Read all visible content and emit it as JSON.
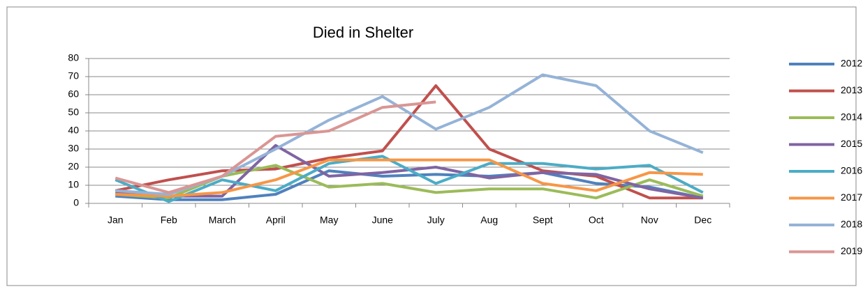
{
  "chart_data": {
    "type": "line",
    "title": "Died in Shelter",
    "categories": [
      "Jan",
      "Feb",
      "March",
      "April",
      "May",
      "June",
      "July",
      "Aug",
      "Sept",
      "Oct",
      "Nov",
      "Dec"
    ],
    "series": [
      {
        "name": "2012",
        "color": "#4f81bd",
        "values": [
          4,
          2,
          2,
          5,
          18,
          15,
          16,
          15,
          17,
          11,
          9,
          3
        ]
      },
      {
        "name": "2013",
        "color": "#c0504d",
        "values": [
          7,
          13,
          18,
          19,
          25,
          29,
          65,
          30,
          18,
          15,
          3,
          3
        ]
      },
      {
        "name": "2014",
        "color": "#9bbb59",
        "values": [
          5,
          3,
          15,
          21,
          9,
          11,
          6,
          8,
          8,
          3,
          13,
          4
        ]
      },
      {
        "name": "2015",
        "color": "#8064a2",
        "values": [
          6,
          4,
          4,
          32,
          15,
          17,
          20,
          14,
          17,
          16,
          8,
          3
        ]
      },
      {
        "name": "2016",
        "color": "#4bacc6",
        "values": [
          13,
          1,
          13,
          7,
          22,
          26,
          11,
          22,
          22,
          19,
          21,
          6
        ]
      },
      {
        "name": "2017",
        "color": "#f79646",
        "values": [
          5,
          4,
          6,
          13,
          24,
          24,
          24,
          24,
          11,
          7,
          17,
          16
        ]
      },
      {
        "name": "2018",
        "color": "#95b3d7",
        "values": [
          7,
          5,
          15,
          30,
          46,
          59,
          41,
          53,
          71,
          65,
          40,
          28
        ]
      },
      {
        "name": "2019",
        "color": "#d99694",
        "values": [
          14,
          6,
          15,
          37,
          40,
          53,
          56,
          null,
          null,
          null,
          null,
          null
        ]
      }
    ],
    "ylim": [
      0,
      80
    ],
    "yticks": [
      0,
      10,
      20,
      30,
      40,
      50,
      60,
      70,
      80
    ],
    "grid": true,
    "legend": "right"
  }
}
